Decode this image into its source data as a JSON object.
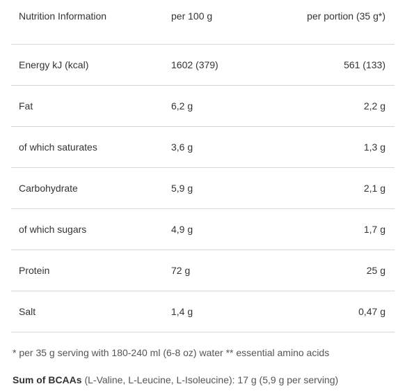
{
  "table": {
    "headers": {
      "label": "Nutrition Information",
      "per100": "per 100 g",
      "perPortion": "per portion (35 g*)"
    },
    "rows": [
      {
        "label": "Energy kJ (kcal)",
        "per100": "1602 (379)",
        "perPortion": "561 (133)"
      },
      {
        "label": "Fat",
        "per100": "6,2 g",
        "perPortion": "2,2 g"
      },
      {
        "label": "of which saturates",
        "per100": "3,6 g",
        "perPortion": "1,3 g"
      },
      {
        "label": "Carbohydrate",
        "per100": "5,9 g",
        "perPortion": "2,1 g"
      },
      {
        "label": "of which sugars",
        "per100": "4,9 g",
        "perPortion": "1,7 g"
      },
      {
        "label": "Protein",
        "per100": "72 g",
        "perPortion": "25 g"
      },
      {
        "label": "Salt",
        "per100": "1,4 g",
        "perPortion": "0,47 g"
      }
    ]
  },
  "footnote": "* per 35 g serving with 180-240 ml (6-8 oz) water ** essential amino acids",
  "bcaa": {
    "label": "Sum of BCAAs",
    "text": " (L-Valine, L-Leucine, L-Isoleucine): 17 g (5,9 g per serving)"
  }
}
